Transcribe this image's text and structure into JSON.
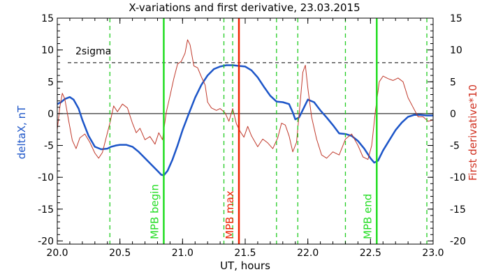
{
  "chart_data": {
    "type": "line",
    "title": "X-variations and first derivative, 23.03.2015",
    "xlabel": "UT, hours",
    "ylabel_left": "deltaX, nT",
    "ylabel_right": "First derivative*10",
    "xlim": [
      20.0,
      23.0
    ],
    "ylim": [
      -20.5,
      15
    ],
    "xticks": [
      20.0,
      20.5,
      21.0,
      21.5,
      22.0,
      22.5,
      23.0
    ],
    "xtick_labels": [
      "20.0",
      "20.5",
      "21.0",
      "21.5",
      "22.0",
      "22.5",
      "23.0"
    ],
    "yticks": [
      15,
      10,
      5,
      0,
      -5,
      -10,
      -15,
      -20
    ],
    "ytick_labels": [
      "15",
      "10",
      "5",
      "0",
      "-5",
      "-10",
      "-15",
      "-20"
    ],
    "threshold": {
      "label": "2sigma",
      "value": 8
    },
    "zero_line": 0,
    "colors": {
      "deltaX": "#1c55c8",
      "derivative": "#c0392b",
      "mpb": "#22dd22",
      "max": "#ee2200",
      "dashed_green": "#22cc22",
      "axis": "#000000"
    },
    "series": [
      {
        "key": "deltaX",
        "axis": "left",
        "x": [
          20.0,
          20.03,
          20.06,
          20.1,
          20.13,
          20.17,
          20.2,
          20.25,
          20.3,
          20.35,
          20.4,
          20.43,
          20.47,
          20.5,
          20.55,
          20.6,
          20.65,
          20.7,
          20.75,
          20.8,
          20.83,
          20.85,
          20.88,
          20.92,
          20.96,
          21.0,
          21.05,
          21.1,
          21.15,
          21.2,
          21.25,
          21.3,
          21.35,
          21.4,
          21.45,
          21.5,
          21.55,
          21.6,
          21.65,
          21.7,
          21.75,
          21.8,
          21.85,
          21.88,
          21.9,
          21.93,
          21.97,
          22.0,
          22.05,
          22.1,
          22.15,
          22.2,
          22.25,
          22.3,
          22.35,
          22.4,
          22.45,
          22.5,
          22.53,
          22.56,
          22.6,
          22.65,
          22.7,
          22.75,
          22.8,
          22.85,
          22.9,
          22.95,
          23.0
        ],
        "y": [
          1.5,
          1.8,
          2.3,
          2.6,
          2.2,
          0.8,
          -1.0,
          -3.5,
          -5.2,
          -5.6,
          -5.5,
          -5.2,
          -5.0,
          -4.9,
          -4.9,
          -5.2,
          -6.0,
          -7.0,
          -8.0,
          -9.0,
          -9.6,
          -9.7,
          -9.0,
          -7.2,
          -5.0,
          -2.6,
          0.0,
          2.5,
          4.5,
          6.0,
          7.0,
          7.4,
          7.6,
          7.6,
          7.5,
          7.4,
          6.8,
          5.7,
          4.2,
          2.8,
          1.9,
          1.8,
          1.5,
          0.2,
          -0.9,
          -0.6,
          1.0,
          2.2,
          1.8,
          0.5,
          -0.6,
          -1.8,
          -3.1,
          -3.2,
          -3.5,
          -4.3,
          -5.5,
          -7.0,
          -7.7,
          -7.4,
          -5.8,
          -4.2,
          -2.6,
          -1.4,
          -0.5,
          -0.2,
          -0.2,
          -0.3,
          -0.3
        ]
      },
      {
        "key": "derivative",
        "axis": "right",
        "x": [
          20.0,
          20.02,
          20.04,
          20.06,
          20.09,
          20.12,
          20.15,
          20.18,
          20.22,
          20.26,
          20.3,
          20.33,
          20.36,
          20.39,
          20.42,
          20.45,
          20.48,
          20.52,
          20.56,
          20.6,
          20.63,
          20.66,
          20.7,
          20.74,
          20.78,
          20.81,
          20.84,
          20.87,
          20.9,
          20.93,
          20.96,
          20.99,
          21.02,
          21.04,
          21.06,
          21.09,
          21.12,
          21.15,
          21.18,
          21.2,
          21.23,
          21.27,
          21.3,
          21.34,
          21.37,
          21.4,
          21.43,
          21.46,
          21.49,
          21.52,
          21.55,
          21.6,
          21.64,
          21.68,
          21.72,
          21.76,
          21.79,
          21.82,
          21.85,
          21.88,
          21.91,
          21.94,
          21.96,
          21.98,
          22.0,
          22.03,
          22.07,
          22.11,
          22.15,
          22.2,
          22.25,
          22.3,
          22.35,
          22.4,
          22.44,
          22.48,
          22.51,
          22.54,
          22.57,
          22.6,
          22.64,
          22.68,
          22.72,
          22.76,
          22.8,
          22.84,
          22.88,
          22.92,
          22.96,
          23.0
        ],
        "y": [
          -2.5,
          1.0,
          3.2,
          2.3,
          -1.0,
          -4.2,
          -5.5,
          -3.8,
          -3.2,
          -4.5,
          -6.2,
          -7.0,
          -6.1,
          -3.8,
          -1.5,
          1.2,
          0.3,
          1.5,
          0.9,
          -1.5,
          -3.0,
          -2.3,
          -4.1,
          -3.6,
          -4.8,
          -3.0,
          -4.1,
          0.2,
          2.8,
          5.5,
          7.8,
          8.2,
          9.5,
          11.6,
          10.8,
          7.5,
          7.2,
          5.8,
          4.5,
          1.8,
          0.9,
          0.5,
          0.8,
          0.1,
          -1.2,
          0.8,
          -1.6,
          -2.8,
          -3.7,
          -2.0,
          -3.5,
          -5.2,
          -4.0,
          -4.6,
          -5.5,
          -3.8,
          -1.5,
          -1.8,
          -3.5,
          -6.0,
          -4.5,
          2.0,
          6.5,
          7.6,
          4.0,
          -0.5,
          -4.0,
          -6.5,
          -7.0,
          -6.0,
          -6.5,
          -4.0,
          -3.2,
          -5.0,
          -6.8,
          -7.2,
          -5.0,
          0.5,
          5.0,
          5.9,
          5.5,
          5.2,
          5.6,
          5.0,
          2.5,
          1.0,
          -0.5,
          -0.5,
          -1.2,
          -1.0
        ]
      }
    ],
    "vertical_lines": [
      {
        "x": 20.42,
        "style": "dashed",
        "color": "#22cc22",
        "label": ""
      },
      {
        "x": 20.85,
        "style": "solid",
        "color": "#22dd22",
        "label": "MPB begin"
      },
      {
        "x": 21.33,
        "style": "dashed",
        "color": "#22cc22",
        "label": ""
      },
      {
        "x": 21.4,
        "style": "dashed",
        "color": "#22cc22",
        "label": ""
      },
      {
        "x": 21.45,
        "style": "solid",
        "color": "#ee2200",
        "label": "MPB max"
      },
      {
        "x": 21.75,
        "style": "dashed",
        "color": "#22cc22",
        "label": ""
      },
      {
        "x": 21.92,
        "style": "dashed",
        "color": "#22cc22",
        "label": ""
      },
      {
        "x": 22.3,
        "style": "dashed",
        "color": "#22cc22",
        "label": ""
      },
      {
        "x": 22.55,
        "style": "solid",
        "color": "#22dd22",
        "label": "MPB end"
      },
      {
        "x": 22.95,
        "style": "dashed",
        "color": "#22cc22",
        "label": ""
      }
    ]
  }
}
